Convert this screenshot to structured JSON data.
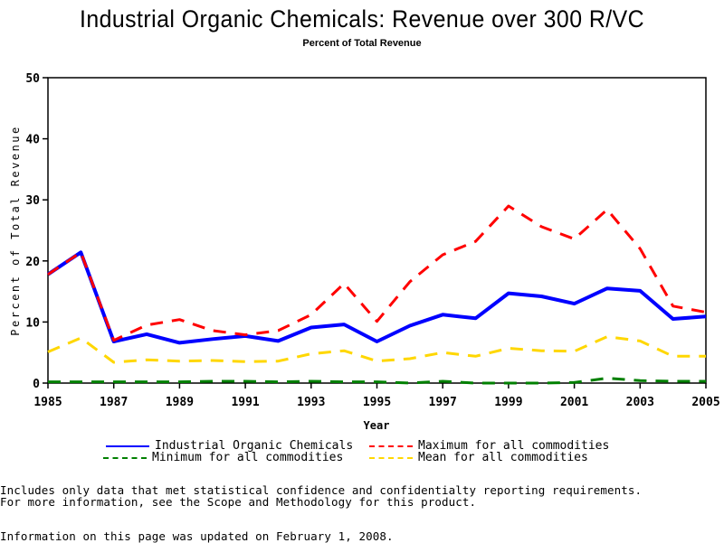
{
  "chart_data": {
    "type": "line",
    "title": "Industrial Organic Chemicals: Revenue over 300 R/VC",
    "subtitle": "Percent of Total Revenue",
    "xlabel": "Year",
    "ylabel": "Percent of Total Revenue",
    "xlim": [
      1985,
      2005
    ],
    "ylim": [
      0,
      50
    ],
    "xticks": [
      "1985",
      "1987",
      "1989",
      "1991",
      "1993",
      "1995",
      "1997",
      "1999",
      "2001",
      "2003",
      "2005"
    ],
    "yticks": [
      "0",
      "10",
      "20",
      "30",
      "40",
      "50"
    ],
    "grid": false,
    "legend_position": "bottom",
    "x": [
      1985,
      1986,
      1987,
      1988,
      1989,
      1990,
      1991,
      1992,
      1993,
      1994,
      1995,
      1996,
      1997,
      1998,
      1999,
      2000,
      2001,
      2002,
      2003,
      2004,
      2005
    ],
    "series": [
      {
        "name": "Industrial Organic Chemicals",
        "color": "#0000ff",
        "style": "solid",
        "values": [
          17.8,
          21.4,
          6.8,
          8.0,
          6.6,
          7.2,
          7.7,
          6.9,
          9.1,
          9.6,
          6.8,
          9.4,
          11.2,
          10.6,
          14.7,
          14.2,
          13.0,
          15.5,
          15.1,
          10.5,
          10.9
        ]
      },
      {
        "name": "Maximum for all commodities",
        "color": "#ff0000",
        "style": "dashed",
        "values": [
          17.8,
          21.4,
          7.0,
          9.5,
          10.4,
          8.6,
          7.9,
          8.6,
          11.2,
          16.3,
          10.1,
          16.6,
          21.0,
          23.2,
          29.0,
          25.6,
          23.6,
          28.4,
          22.0,
          12.6,
          11.6
        ]
      },
      {
        "name": "Minimum for all commodities",
        "color": "#008000",
        "style": "dashed",
        "values": [
          0.2,
          0.2,
          0.2,
          0.2,
          0.2,
          0.3,
          0.3,
          0.2,
          0.3,
          0.2,
          0.2,
          0.0,
          0.3,
          0.0,
          0.0,
          0.0,
          0.1,
          0.8,
          0.4,
          0.3,
          0.3
        ]
      },
      {
        "name": "Mean for all commodities",
        "color": "#ffd700",
        "style": "dashed",
        "values": [
          5.1,
          7.4,
          3.4,
          3.8,
          3.6,
          3.7,
          3.5,
          3.6,
          4.8,
          5.3,
          3.6,
          4.0,
          5.0,
          4.4,
          5.7,
          5.3,
          5.2,
          7.6,
          6.9,
          4.4,
          4.4
        ]
      }
    ]
  },
  "legend": {
    "items": [
      {
        "label": "Industrial Organic Chemicals",
        "color": "#0000ff",
        "style": "solid"
      },
      {
        "label": "Maximum for all commodities",
        "color": "#ff0000",
        "style": "dashed"
      },
      {
        "label": "Minimum for all commodities",
        "color": "#008000",
        "style": "dashed"
      },
      {
        "label": "Mean for all commodities",
        "color": "#ffd700",
        "style": "dashed"
      }
    ]
  },
  "footnotes": {
    "line1": "Includes only data that met statistical confidence and confidentialty reporting requirements.",
    "line2": "For more information, see the Scope and Methodology for this product.",
    "updated": "Information on this page was updated on February 1, 2008."
  }
}
